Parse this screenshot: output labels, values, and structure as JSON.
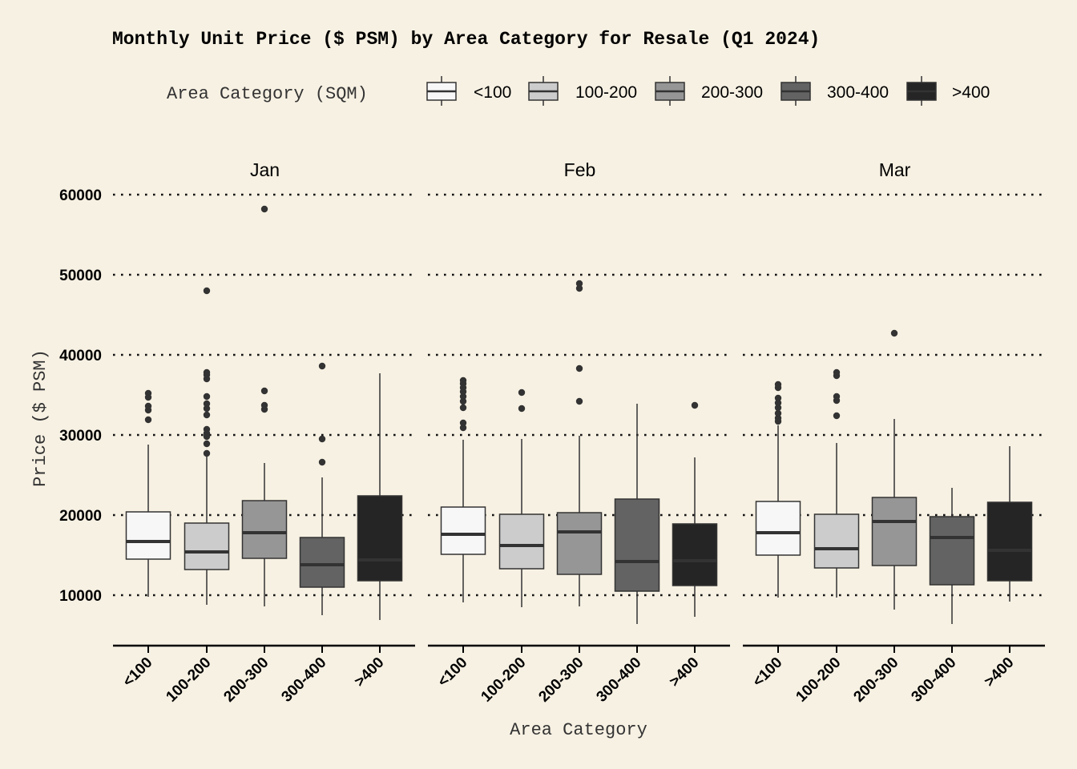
{
  "chart_data": {
    "type": "boxplot",
    "title": "Monthly Unit Price ($ PSM) by Area Category for Resale (Q1 2024)",
    "xlabel": "Area Category",
    "ylabel": "Price ($ PSM)",
    "ylim": [
      3800,
      62000
    ],
    "yticks": [
      10000,
      20000,
      30000,
      40000,
      50000,
      60000
    ],
    "grid": "horizontal dotted",
    "legend": {
      "title": "Area Category (SQM)",
      "placement": "top",
      "entries": [
        {
          "label": "<100",
          "color": "#f7f7f7"
        },
        {
          "label": "100-200",
          "color": "#cccccc"
        },
        {
          "label": "200-300",
          "color": "#969696"
        },
        {
          "label": "300-400",
          "color": "#636363"
        },
        {
          "label": ">400",
          "color": "#252525"
        }
      ]
    },
    "categories": [
      "<100",
      "100-200",
      "200-300",
      "300-400",
      ">400"
    ],
    "facets": [
      {
        "name": "Jan",
        "boxes": [
          {
            "category": "<100",
            "whisker_low": 9800,
            "q1": 14500,
            "median": 16700,
            "q3": 20400,
            "whisker_high": 28800,
            "outliers": [
              31900,
              33100,
              33600,
              34700,
              35200
            ]
          },
          {
            "category": "100-200",
            "whisker_low": 8800,
            "q1": 13200,
            "median": 15400,
            "q3": 19000,
            "whisker_high": 27500,
            "outliers": [
              27700,
              28900,
              29800,
              30200,
              30700,
              32500,
              33300,
              33900,
              34800,
              37000,
              37500,
              37800,
              48000
            ]
          },
          {
            "category": "200-300",
            "whisker_low": 8600,
            "q1": 14600,
            "median": 17800,
            "q3": 21800,
            "whisker_high": 26500,
            "outliers": [
              33200,
              33700,
              35500,
              58200
            ]
          },
          {
            "category": "300-400",
            "whisker_low": 7500,
            "q1": 11000,
            "median": 13800,
            "q3": 17200,
            "whisker_high": 24700,
            "outliers": [
              26600,
              29500,
              38600
            ]
          },
          {
            "category": ">400",
            "whisker_low": 6900,
            "q1": 11800,
            "median": 14400,
            "q3": 22400,
            "whisker_high": 37700,
            "outliers": []
          }
        ]
      },
      {
        "name": "Feb",
        "boxes": [
          {
            "category": "<100",
            "whisker_low": 9100,
            "q1": 15100,
            "median": 17600,
            "q3": 21000,
            "whisker_high": 29400,
            "outliers": [
              30900,
              31500,
              33400,
              34200,
              34800,
              35400,
              35900,
              36400,
              36800
            ]
          },
          {
            "category": "100-200",
            "whisker_low": 8500,
            "q1": 13300,
            "median": 16200,
            "q3": 20100,
            "whisker_high": 29500,
            "outliers": [
              33300,
              35300
            ]
          },
          {
            "category": "200-300",
            "whisker_low": 8600,
            "q1": 12600,
            "median": 17900,
            "q3": 20300,
            "whisker_high": 29900,
            "outliers": [
              34200,
              38300,
              48300,
              48900
            ]
          },
          {
            "category": "300-400",
            "whisker_low": 6400,
            "q1": 10500,
            "median": 14200,
            "q3": 22000,
            "whisker_high": 33900,
            "outliers": []
          },
          {
            "category": ">400",
            "whisker_low": 7300,
            "q1": 11200,
            "median": 14300,
            "q3": 18900,
            "whisker_high": 27200,
            "outliers": [
              33700
            ]
          }
        ]
      },
      {
        "name": "Mar",
        "boxes": [
          {
            "category": "<100",
            "whisker_low": 9700,
            "q1": 15000,
            "median": 17800,
            "q3": 21700,
            "whisker_high": 31200,
            "outliers": [
              31700,
              32100,
              32700,
              33400,
              34000,
              34600,
              35900,
              36300
            ]
          },
          {
            "category": "100-200",
            "whisker_low": 9700,
            "q1": 13400,
            "median": 15800,
            "q3": 20100,
            "whisker_high": 29000,
            "outliers": [
              32400,
              34300,
              34800,
              37400,
              37800
            ]
          },
          {
            "category": "200-300",
            "whisker_low": 8200,
            "q1": 13700,
            "median": 19200,
            "q3": 22200,
            "whisker_high": 32000,
            "outliers": [
              42700
            ]
          },
          {
            "category": "300-400",
            "whisker_low": 6400,
            "q1": 11300,
            "median": 17200,
            "q3": 19800,
            "whisker_high": 23400,
            "outliers": []
          },
          {
            "category": ">400",
            "whisker_low": 9200,
            "q1": 11800,
            "median": 15600,
            "q3": 21600,
            "whisker_high": 28600,
            "outliers": []
          }
        ]
      }
    ]
  }
}
